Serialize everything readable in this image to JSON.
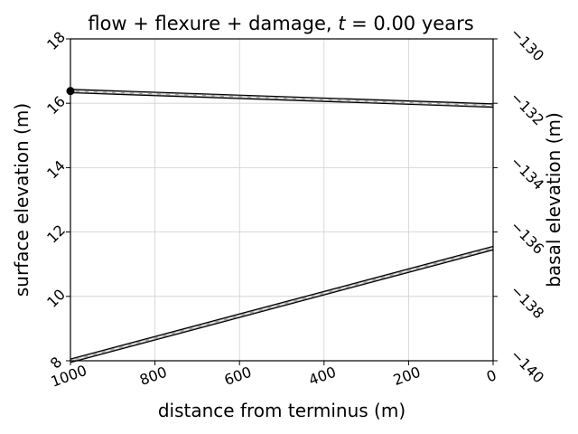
{
  "chart_data": {
    "type": "line",
    "title_parts": [
      "flow + flexure + damage, ",
      "t",
      " = 0.00 years"
    ],
    "xlabel": "distance from terminus (m)",
    "ylabel_left": "surface elevation (m)",
    "ylabel_right": "basal elevation (m)",
    "xlim": [
      1000,
      0
    ],
    "ylim_left": [
      8,
      18
    ],
    "ylim_right": [
      -140,
      -130
    ],
    "x_ticks": [
      1000,
      800,
      600,
      400,
      200,
      0
    ],
    "x_tick_labels": [
      "1000",
      "800",
      "600",
      "400",
      "200",
      "0"
    ],
    "y_left_ticks": [
      8,
      10,
      12,
      14,
      16,
      18
    ],
    "y_left_tick_labels": [
      "8",
      "10",
      "12",
      "14",
      "16",
      "18"
    ],
    "y_right_ticks": [
      -140,
      -138,
      -136,
      -134,
      -132,
      -130
    ],
    "y_right_tick_labels": [
      "−140",
      "−138",
      "−136",
      "−134",
      "−132",
      "−130"
    ],
    "grid": true,
    "series": [
      {
        "axis": "left",
        "x": [
          1000,
          0
        ],
        "y": [
          16.38,
          15.93
        ]
      },
      {
        "axis": "right",
        "x": [
          1000,
          0
        ],
        "y": [
          -140.0,
          -136.5
        ]
      }
    ],
    "markers": [
      {
        "axis": "left",
        "x": 1000,
        "y": 16.38
      }
    ],
    "colors": {
      "line_outer": "#000000",
      "line_inner": "#a0a0a0",
      "line_dash": "#ffffff"
    }
  }
}
